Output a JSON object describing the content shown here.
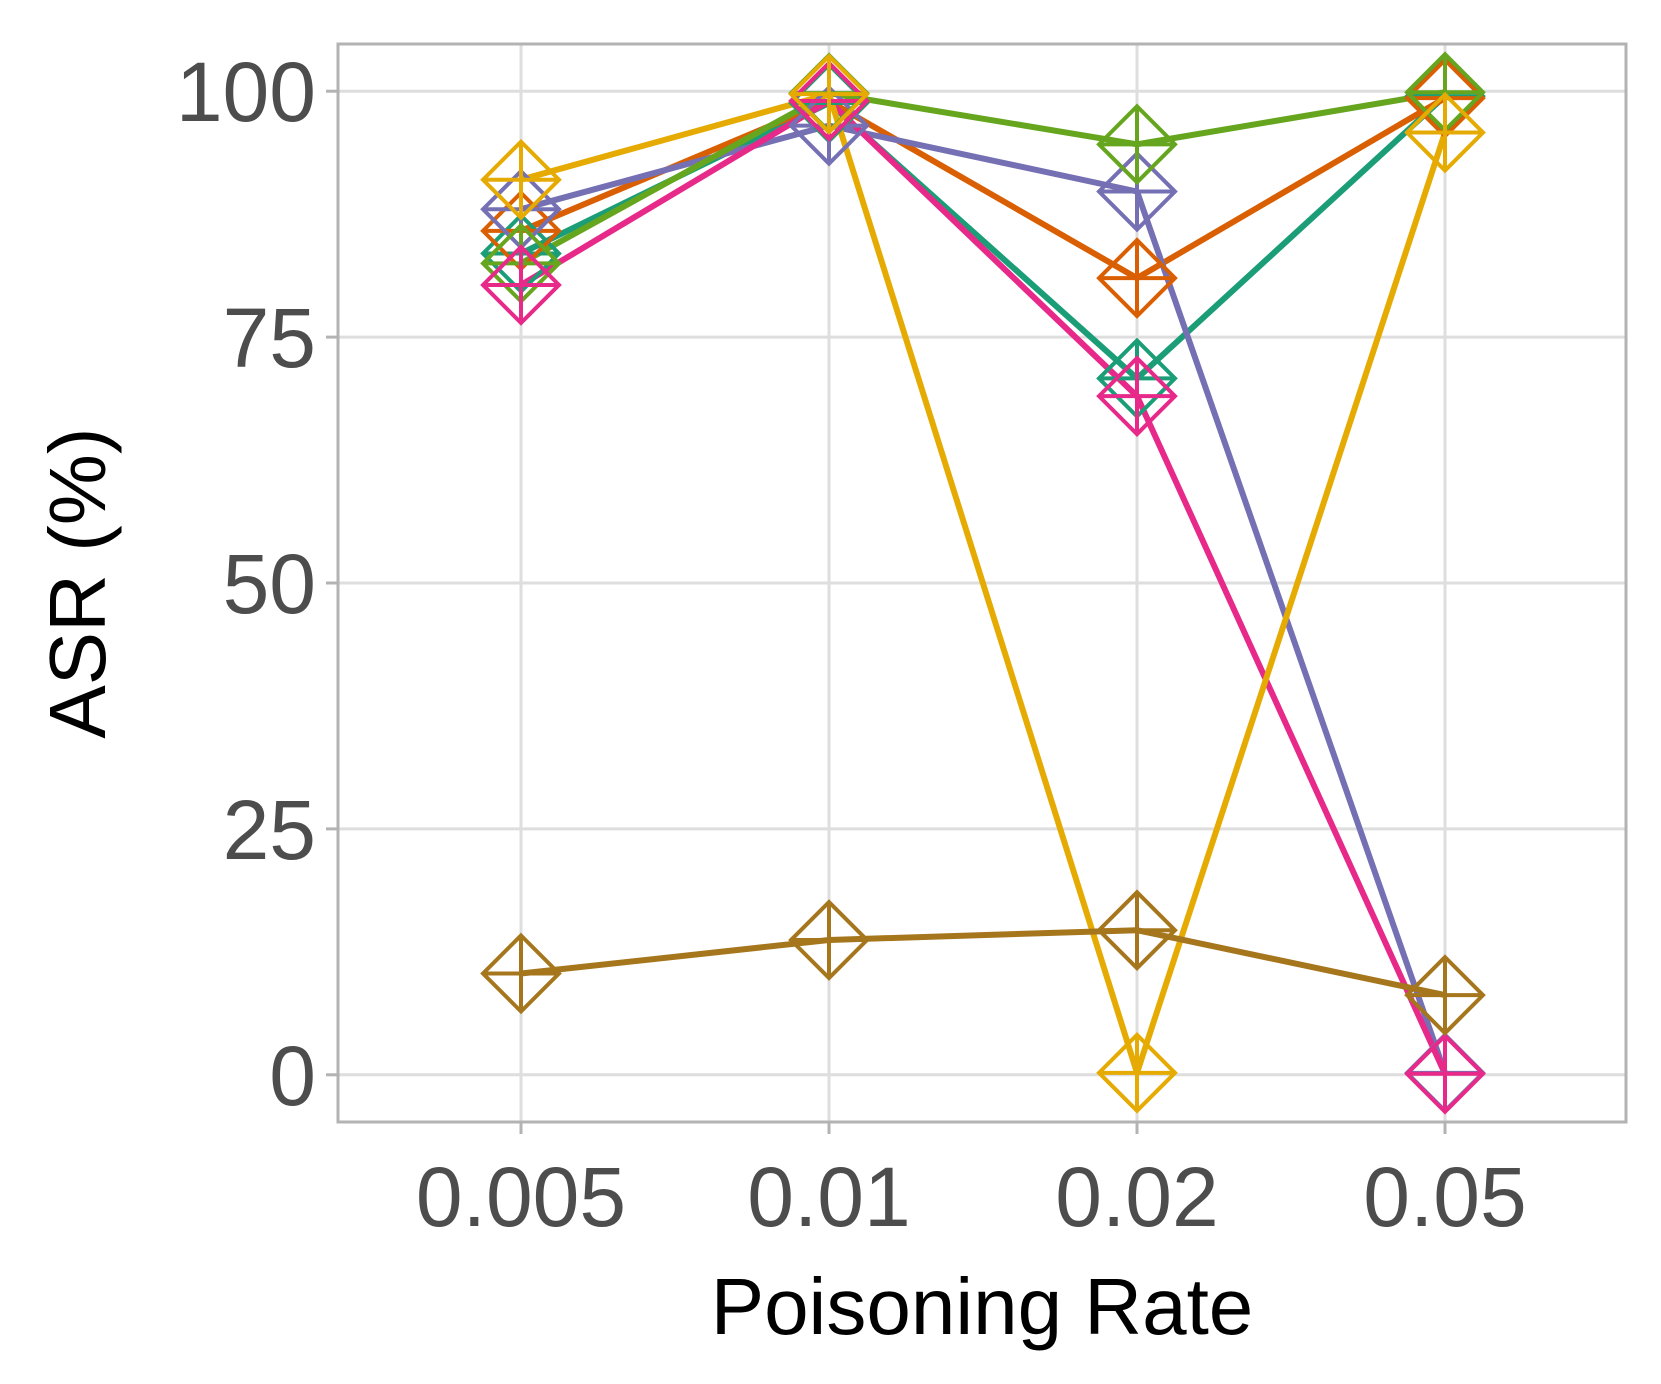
{
  "chart_data": {
    "type": "line",
    "title": "",
    "xlabel": "Poisoning Rate",
    "ylabel": "ASR (%)",
    "categories": [
      "0.005",
      "0.01",
      "0.02",
      "0.05"
    ],
    "ylim": [
      -4.8,
      104.8
    ],
    "yticks": [
      0,
      25,
      50,
      75,
      100
    ],
    "ytick_labels": [
      "0",
      "25",
      "50",
      "75",
      "100"
    ],
    "grid": true,
    "marker": "diamond-plus",
    "series": [
      {
        "name": "series-teal",
        "color": "#1b9e77",
        "values": [
          83.5,
          98.8,
          70.8,
          99.5
        ]
      },
      {
        "name": "series-orange",
        "color": "#d95f02",
        "values": [
          85.8,
          99.0,
          81.0,
          99.3
        ]
      },
      {
        "name": "series-purple",
        "color": "#7570b3",
        "values": [
          88.0,
          96.5,
          89.8,
          0.2
        ]
      },
      {
        "name": "series-green",
        "color": "#66a61e",
        "values": [
          82.5,
          99.8,
          94.6,
          99.9
        ]
      },
      {
        "name": "series-pink",
        "color": "#e7298a",
        "values": [
          80.3,
          99.0,
          69.0,
          0.1
        ]
      },
      {
        "name": "series-yellow",
        "color": "#e6ab02",
        "values": [
          91.0,
          99.7,
          0.2,
          95.8
        ]
      },
      {
        "name": "series-brown",
        "color": "#a6761d",
        "values": [
          10.3,
          13.7,
          14.7,
          8.1
        ]
      }
    ]
  }
}
